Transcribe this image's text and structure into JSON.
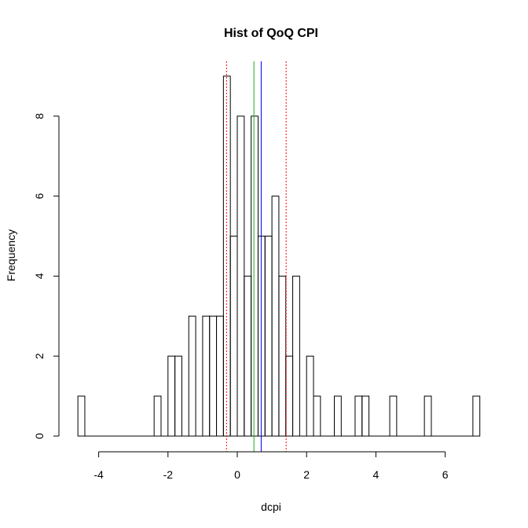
{
  "chart_data": {
    "type": "bar",
    "title": "Hist of QoQ CPI",
    "xlabel": "dcpi",
    "ylabel": "Frequency",
    "xlim": [
      -4.6,
      7.0
    ],
    "ylim": [
      0,
      9
    ],
    "x_ticks": [
      -4,
      -2,
      0,
      2,
      4,
      6
    ],
    "y_ticks": [
      0,
      2,
      4,
      6,
      8
    ],
    "bin_width": 0.2,
    "bin_start": -4.6,
    "counts": [
      1,
      0,
      0,
      0,
      0,
      0,
      0,
      0,
      0,
      0,
      0,
      1,
      0,
      2,
      2,
      0,
      3,
      0,
      3,
      3,
      3,
      9,
      5,
      8,
      4,
      8,
      5,
      5,
      6,
      4,
      2,
      4,
      0,
      2,
      1,
      0,
      0,
      1,
      0,
      0,
      1,
      1,
      0,
      0,
      0,
      1,
      0,
      0,
      0,
      0,
      1,
      0,
      0,
      0,
      0,
      0,
      0,
      1
    ],
    "vlines": [
      {
        "x": -0.31,
        "color": "#ff0000",
        "style": "dotted"
      },
      {
        "x": 0.48,
        "color": "#22aa22",
        "style": "solid"
      },
      {
        "x": 0.69,
        "color": "#0000ff",
        "style": "solid"
      },
      {
        "x": 1.41,
        "color": "#ff0000",
        "style": "dotted"
      }
    ],
    "grid": false
  }
}
